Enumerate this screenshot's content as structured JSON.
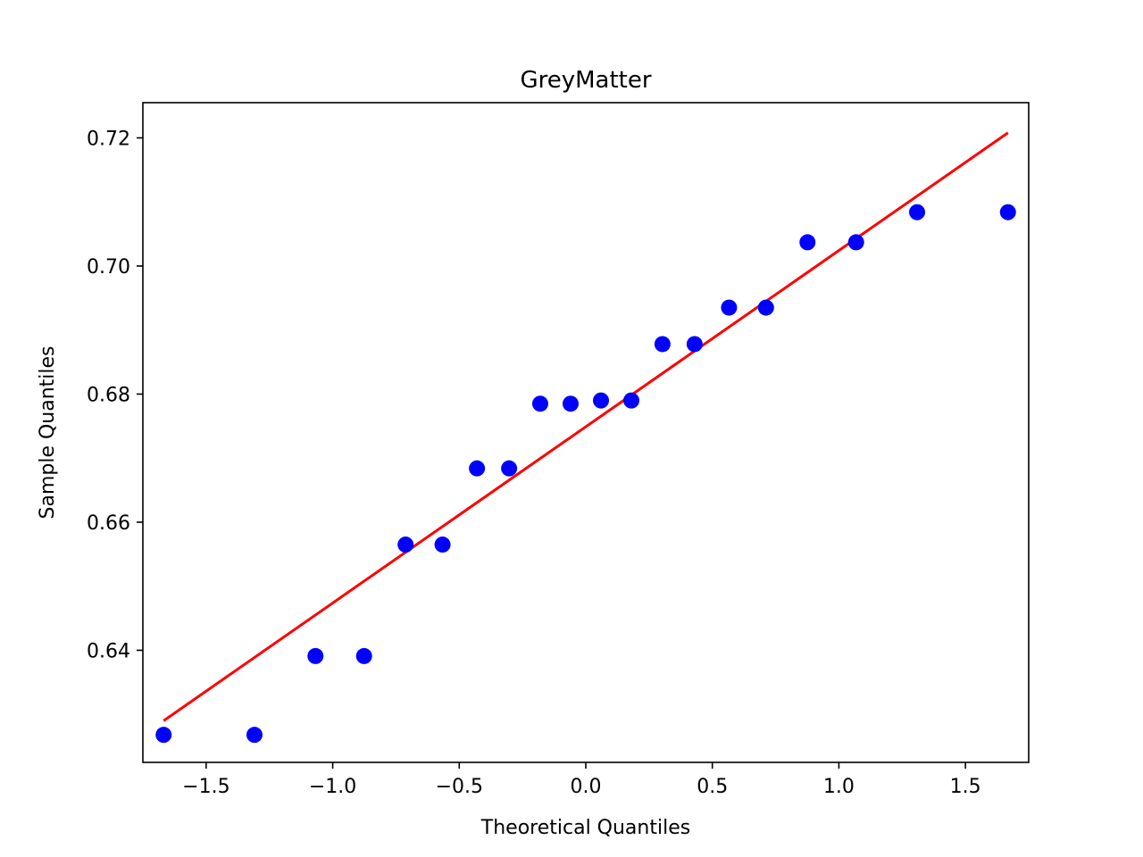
{
  "chart_data": {
    "type": "scatter",
    "title": "GreyMatter",
    "xlabel": "Theoretical Quantiles",
    "ylabel": "Sample Quantiles",
    "xlim": [
      -1.75,
      1.75
    ],
    "ylim": [
      0.6225,
      0.7255
    ],
    "xticks": [
      -1.5,
      -1.0,
      -0.5,
      0.0,
      0.5,
      1.0,
      1.5
    ],
    "xtick_labels": [
      "−1.5",
      "−1.0",
      "−0.5",
      "0.0",
      "0.5",
      "1.0",
      "1.5"
    ],
    "yticks": [
      0.64,
      0.66,
      0.68,
      0.7,
      0.72
    ],
    "ytick_labels": [
      "0.64",
      "0.66",
      "0.68",
      "0.70",
      "0.72"
    ],
    "grid": false,
    "points": {
      "x": [
        -1.668,
        -1.309,
        -1.068,
        -0.876,
        -0.712,
        -0.566,
        -0.43,
        -0.303,
        -0.18,
        -0.06,
        0.06,
        0.18,
        0.303,
        0.43,
        0.566,
        0.712,
        0.876,
        1.068,
        1.309,
        1.668
      ],
      "y": [
        0.6268,
        0.6268,
        0.6391,
        0.6391,
        0.6565,
        0.6565,
        0.6684,
        0.6684,
        0.6785,
        0.6785,
        0.679,
        0.679,
        0.6878,
        0.6878,
        0.6935,
        0.6935,
        0.7037,
        0.7037,
        0.7084,
        0.7084
      ],
      "color": "#0000ff"
    },
    "reference_line": {
      "x": [
        -1.668,
        1.668
      ],
      "y": [
        0.629,
        0.7208
      ],
      "color": "#ff0000"
    }
  }
}
